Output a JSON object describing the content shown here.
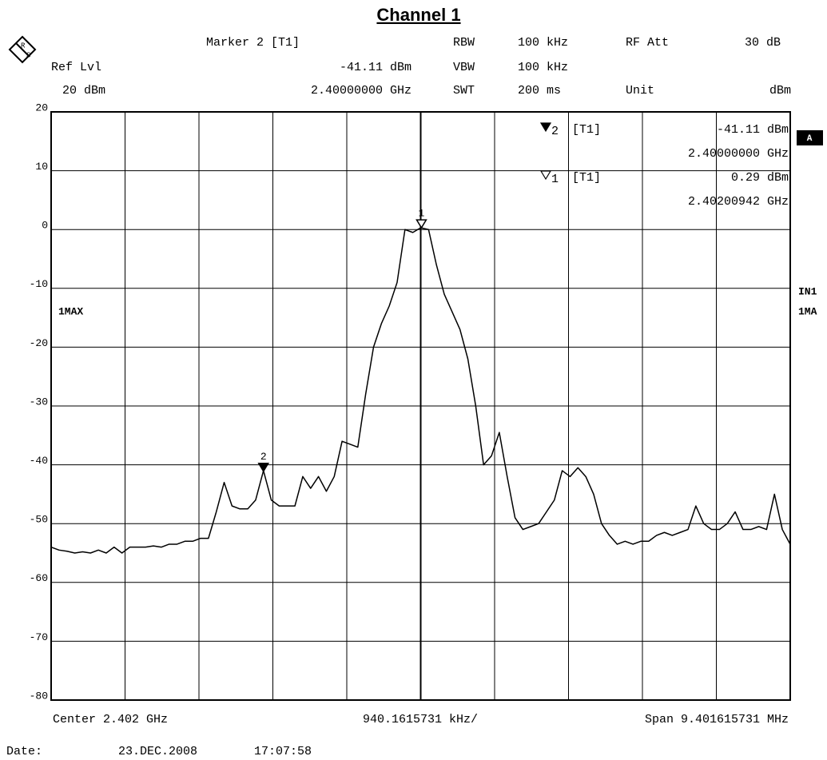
{
  "chart_data": {
    "type": "line",
    "title": "Channel 1",
    "logo": {
      "r": "R",
      "s": "S"
    },
    "header": {
      "marker": "Marker 2 [T1]",
      "ref_lvl_label": "Ref Lvl",
      "ref_lvl": "20 dBm",
      "rbw_label": "RBW",
      "rbw": "100 kHz",
      "vbw_label": "VBW",
      "vbw": "100 kHz",
      "swt_label": "SWT",
      "swt": "200 ms",
      "rf_att_label": "RF Att",
      "rf_att": "30 dB",
      "unit_label": "Unit",
      "unit": "dBm"
    },
    "markers": [
      {
        "name": "2",
        "trace": "[T1]",
        "filled": true,
        "level": -41.11,
        "level_label": "-41.11 dBm",
        "freq": 2.4,
        "freq_label": "2.40000000 GHz"
      },
      {
        "name": "1",
        "trace": "[T1]",
        "filled": false,
        "level": 0.29,
        "level_label": "0.29 dBm",
        "freq": 2.40200942,
        "freq_label": "2.40200942 GHz"
      }
    ],
    "side_labels": {
      "box": "A",
      "in": "IN1",
      "trace_short": "1MA"
    },
    "footer": {
      "center": "Center 2.402 GHz",
      "per_div": "940.1615731 kHz/",
      "span": "Span 9.401615731 MHz",
      "date_label": "Date:",
      "date": "23.DEC.2008",
      "time": "17:07:58"
    },
    "xlim": [
      2.397299192,
      2.406700808
    ],
    "ylim": [
      -80,
      20
    ],
    "yticks": [
      20,
      10,
      0,
      -10,
      -20,
      -30,
      -40,
      -50,
      -60,
      -70,
      -80
    ],
    "grid": true,
    "x": [
      2.3973,
      2.3974,
      2.3975,
      2.3976,
      2.3977,
      2.3978,
      2.3979,
      2.398,
      2.3981,
      2.3982,
      2.3983,
      2.3984,
      2.3985,
      2.3986,
      2.3987,
      2.3988,
      2.3989,
      2.399,
      2.3991,
      2.3992,
      2.3993,
      2.3994,
      2.3995,
      2.3996,
      2.3997,
      2.3998,
      2.3999,
      2.4,
      2.4001,
      2.4002,
      2.4003,
      2.4004,
      2.4005,
      2.4006,
      2.4007,
      2.4008,
      2.4009,
      2.401,
      2.4011,
      2.4012,
      2.4013,
      2.4014,
      2.4015,
      2.4016,
      2.4017,
      2.4018,
      2.4019,
      2.402,
      2.4021,
      2.4022,
      2.4023,
      2.4024,
      2.4025,
      2.4026,
      2.4027,
      2.4028,
      2.4029,
      2.403,
      2.4031,
      2.4032,
      2.4033,
      2.4034,
      2.4035,
      2.4036,
      2.4037,
      2.4038,
      2.4039,
      2.404,
      2.4041,
      2.4042,
      2.4043,
      2.4044,
      2.4045,
      2.4046,
      2.4047,
      2.4048,
      2.4049,
      2.405,
      2.4051,
      2.4052,
      2.4053,
      2.4054,
      2.4055,
      2.4056,
      2.4057,
      2.4058,
      2.4059,
      2.406,
      2.4061,
      2.4062,
      2.4063,
      2.4064,
      2.4065,
      2.4066,
      2.4067
    ],
    "series": [
      {
        "name": "1MAX",
        "color": "#000000",
        "values": [
          -54,
          -54.5,
          -54.7,
          -55,
          -54.8,
          -55,
          -54.5,
          -55,
          -54,
          -55,
          -54,
          -54,
          -54,
          -53.8,
          -54,
          -53.5,
          -53.5,
          -53,
          -53,
          -52.5,
          -52.5,
          -48,
          -43,
          -47,
          -47.5,
          -47.5,
          -46,
          -41,
          -46,
          -47,
          -47,
          -47,
          -42,
          -44,
          -42,
          -44.5,
          -42,
          -36,
          -36.5,
          -37,
          -28,
          -20,
          -16,
          -13,
          -9,
          0,
          -0.5,
          0.3,
          0,
          -6,
          -11,
          -14,
          -17,
          -22,
          -30,
          -40,
          -38.5,
          -34.5,
          -42,
          -49,
          -51,
          -50.5,
          -50,
          -48,
          -46,
          -41,
          -42,
          -40.5,
          -42,
          -45,
          -50,
          -52,
          -53.5,
          -53,
          -53.5,
          -53,
          -53,
          -52,
          -51.5,
          -52,
          -51.5,
          -51,
          -47,
          -50,
          -51,
          -51,
          -50,
          -48,
          -51,
          -51,
          -50.5,
          -51,
          -45,
          -51,
          -53.5
        ]
      }
    ]
  }
}
